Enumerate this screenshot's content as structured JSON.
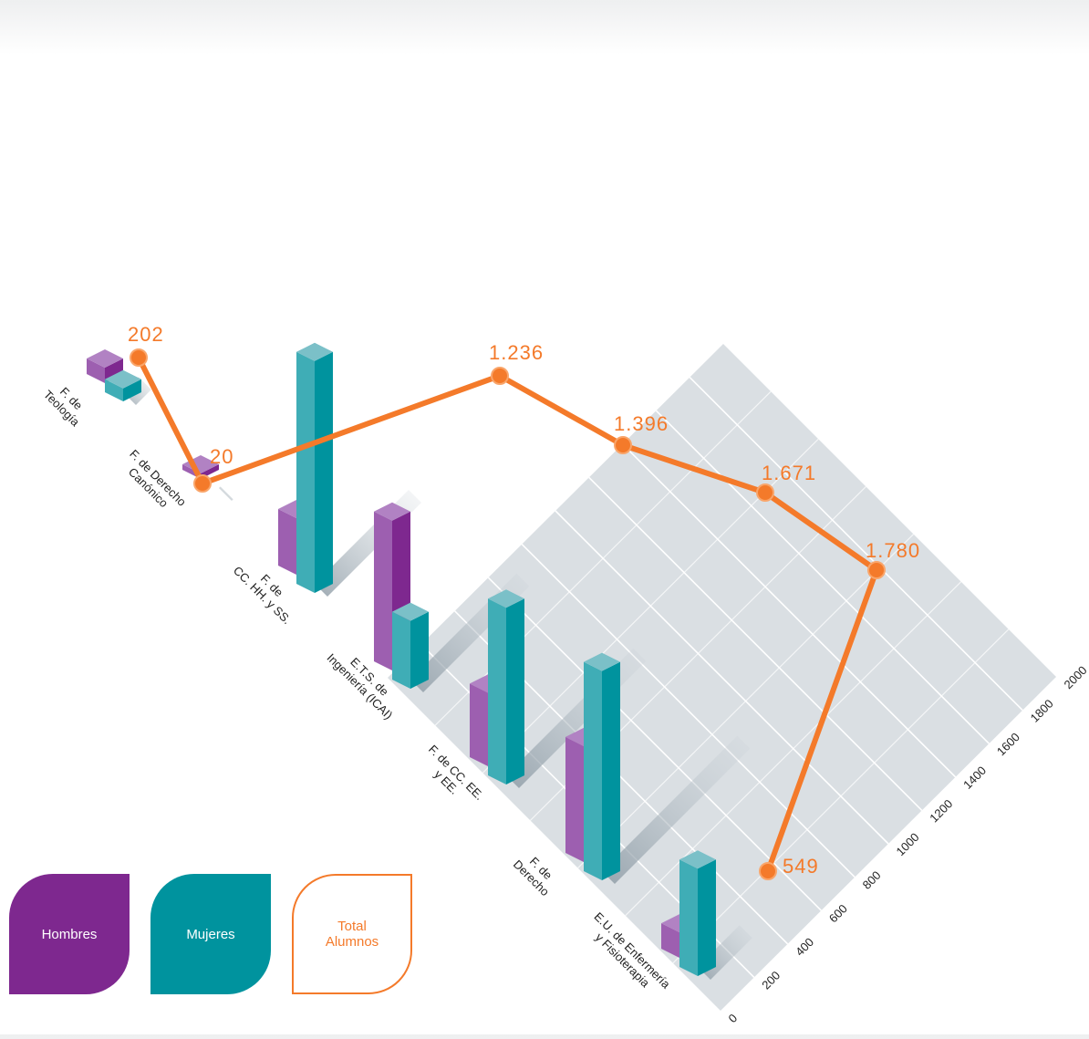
{
  "chart_data": {
    "type": "bar",
    "categories": [
      [
        "F. de",
        "Teología"
      ],
      [
        "F. de Derecho",
        "Canónico"
      ],
      [
        "F. de",
        "CC. HH. y SS."
      ],
      [
        "E.T.S. de",
        "Ingeniería (ICAI)"
      ],
      [
        "F. de CC. EE.",
        "y EE."
      ],
      [
        "F. de",
        "Derecho"
      ],
      [
        "E.U. de Enfermería",
        "y Fisioterapia"
      ]
    ],
    "series": [
      {
        "name": "Hombres",
        "values": [
          110,
          18,
          400,
          1060,
          520,
          820,
          180
        ]
      },
      {
        "name": "Mujeres",
        "values": [
          92,
          2,
          1640,
          480,
          1250,
          1480,
          760
        ]
      },
      {
        "name": "Total Alumnos",
        "values": [
          202,
          20,
          1236,
          1396,
          1671,
          1780,
          549
        ]
      }
    ],
    "total_labels": [
      "202",
      "20",
      "1.236",
      "1.396",
      "1.671",
      "1.780",
      "549"
    ],
    "axis_ticks": [
      "0",
      "200",
      "400",
      "600",
      "800",
      "1000",
      "1200",
      "1400",
      "1600",
      "1800",
      "2000"
    ],
    "ylim": [
      0,
      2000
    ],
    "grid": true,
    "legend_position": "bottom-left"
  },
  "legend": {
    "hombres": "Hombres",
    "mujeres": "Mujeres",
    "total_line1": "Total",
    "total_line2": "Alumnos"
  },
  "colors": {
    "hombres": "#7e288f",
    "hombres_top": "#b182c3",
    "hombres_light": "#9d5fb0",
    "mujeres": "#00939e",
    "mujeres_top": "#7bc0c8",
    "mujeres_light": "#3fadb6",
    "total": "#f47a2a",
    "floor": "#dadfe3"
  }
}
